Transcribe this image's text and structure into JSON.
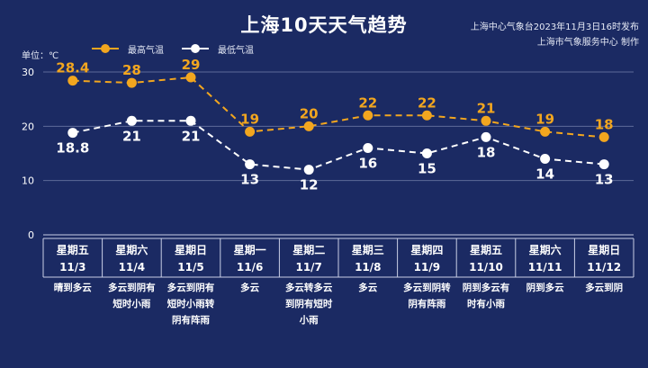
{
  "title": "上海10天天气趋势",
  "issuer": {
    "line1": "上海中心气象台2023年11月3日16时发布",
    "line2": "上海市气象服务中心 制作"
  },
  "unit_label": "单位：℃",
  "colors": {
    "background": "#1b2a63",
    "high": "#f2a61f",
    "low": "#ffffff",
    "grid": "#5e6a98",
    "text": "#ffffff"
  },
  "chart_data": {
    "type": "line",
    "ylim": [
      0,
      30
    ],
    "yticks": [
      0,
      10,
      20,
      30
    ],
    "grid": true,
    "legend": "top-left",
    "categories": [
      {
        "weekday": "星期五",
        "date": "11/3",
        "weather": [
          "晴到多云"
        ]
      },
      {
        "weekday": "星期六",
        "date": "11/4",
        "weather": [
          "多云到阴有",
          "短时小雨"
        ]
      },
      {
        "weekday": "星期日",
        "date": "11/5",
        "weather": [
          "多云到阴有",
          "短时小雨转",
          "阴有阵雨"
        ]
      },
      {
        "weekday": "星期一",
        "date": "11/6",
        "weather": [
          "多云"
        ]
      },
      {
        "weekday": "星期二",
        "date": "11/7",
        "weather": [
          "多云转多云",
          "到阴有短时",
          "小雨"
        ]
      },
      {
        "weekday": "星期三",
        "date": "11/8",
        "weather": [
          "多云"
        ]
      },
      {
        "weekday": "星期四",
        "date": "11/9",
        "weather": [
          "多云到阴转",
          "阴有阵雨"
        ]
      },
      {
        "weekday": "星期五",
        "date": "11/10",
        "weather": [
          "阴到多云有",
          "时有小雨"
        ]
      },
      {
        "weekday": "星期六",
        "date": "11/11",
        "weather": [
          "阴到多云"
        ]
      },
      {
        "weekday": "星期日",
        "date": "11/12",
        "weather": [
          "多云到阴"
        ]
      }
    ],
    "series": [
      {
        "name": "最高气温",
        "key": "high",
        "values": [
          28.4,
          28,
          29,
          19,
          20,
          22,
          22,
          21,
          19,
          18
        ]
      },
      {
        "name": "最低气温",
        "key": "low",
        "values": [
          18.8,
          21,
          21,
          13,
          12,
          16,
          15,
          18,
          14,
          13
        ]
      }
    ]
  }
}
